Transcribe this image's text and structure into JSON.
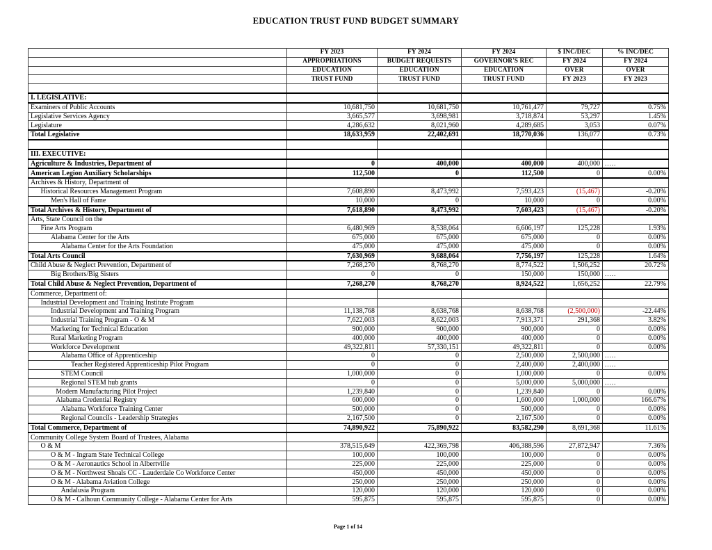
{
  "title": "EDUCATION TRUST FUND BUDGET SUMMARY",
  "footer": {
    "page_label": "Page 1 of 14"
  },
  "colors": {
    "negative_value": "#c00000",
    "text": "#000000",
    "background": "#ffffff"
  },
  "table": {
    "header_rows": [
      [
        "",
        "FY 2023",
        "FY 2024",
        "FY 2024",
        "$ INC/DEC",
        "% INC/DEC"
      ],
      [
        "",
        "APPROPRIATIONS",
        "BUDGET REQUESTS",
        "GOVERNOR'S REC",
        "FY 2024",
        "FY 2024"
      ],
      [
        "",
        "EDUCATION",
        "EDUCATION",
        "EDUCATION",
        "OVER",
        "OVER"
      ],
      [
        "",
        "TRUST FUND",
        "TRUST FUND",
        "TRUST FUND",
        "FY 2023",
        "FY 2023"
      ],
      [
        "",
        "",
        "",
        "",
        "",
        ""
      ]
    ],
    "rows": [
      {
        "label": "I. LEGISLATIVE:",
        "bold": true,
        "indent": 0,
        "values": [
          "",
          "",
          "",
          "",
          ""
        ]
      },
      {
        "label": "Examiners of Public Accounts",
        "bold": false,
        "indent": 0,
        "values": [
          "10,681,750",
          "10,681,750",
          "10,761,477",
          "79,727",
          "0.75%"
        ]
      },
      {
        "label": "Legislative Services Agency",
        "bold": false,
        "indent": 0,
        "values": [
          "3,665,577",
          "3,698,981",
          "3,718,874",
          "53,297",
          "1.45%"
        ]
      },
      {
        "label": "Legislature",
        "bold": false,
        "indent": 0,
        "values": [
          "4,286,632",
          "8,021,960",
          "4,289,685",
          "3,053",
          "0.07%"
        ]
      },
      {
        "label": "Total Legislative",
        "bold": true,
        "indent": 0,
        "values": [
          "18,633,959",
          "22,402,691",
          "18,770,036",
          "136,077",
          "0.73%"
        ]
      },
      {
        "label": "",
        "bold": false,
        "indent": 0,
        "values": [
          "",
          "",
          "",
          "",
          ""
        ]
      },
      {
        "label": "III. EXECUTIVE:",
        "bold": true,
        "indent": 0,
        "values": [
          "",
          "",
          "",
          "",
          ""
        ]
      },
      {
        "label": "Agriculture & Industries, Department of",
        "bold": true,
        "indent": 0,
        "values": [
          "0",
          "400,000",
          "400,000",
          "400,000",
          "....."
        ]
      },
      {
        "label": "American Legion Auxiliary Scholarships",
        "bold": true,
        "indent": 0,
        "values": [
          "112,500",
          "0",
          "112,500",
          "0",
          "0.00%"
        ]
      },
      {
        "label": "Archives & History, Department of",
        "bold": false,
        "indent": 0,
        "values": [
          "",
          "",
          "",
          "",
          ""
        ]
      },
      {
        "label": "Historical Resources Management Program",
        "bold": false,
        "indent": 1,
        "values": [
          "7,608,890",
          "8,473,992",
          "7,593,423",
          "(15,467)",
          "-0.20%"
        ]
      },
      {
        "label": "Men's Hall of Fame",
        "bold": false,
        "indent": 2,
        "values": [
          "10,000",
          "0",
          "10,000",
          "0",
          "0.00%"
        ]
      },
      {
        "label": "Total Archives & History, Department of",
        "bold": true,
        "indent": 0,
        "values": [
          "7,618,890",
          "8,473,992",
          "7,603,423",
          "(15,467)",
          "-0.20%"
        ]
      },
      {
        "label": "Arts, State Council on the",
        "bold": false,
        "indent": 0,
        "values": [
          "",
          "",
          "",
          "",
          ""
        ]
      },
      {
        "label": "Fine Arts Program",
        "bold": false,
        "indent": 1,
        "values": [
          "6,480,969",
          "8,538,064",
          "6,606,197",
          "125,228",
          "1.93%"
        ]
      },
      {
        "label": "Alabama Center for the Arts",
        "bold": false,
        "indent": 2,
        "values": [
          "675,000",
          "675,000",
          "675,000",
          "0",
          "0.00%"
        ]
      },
      {
        "label": "Alabama Center for the Arts Foundation",
        "bold": false,
        "indent": 3,
        "values": [
          "475,000",
          "475,000",
          "475,000",
          "0",
          "0.00%"
        ]
      },
      {
        "label": "Total Arts Council",
        "bold": true,
        "indent": 0,
        "values": [
          "7,630,969",
          "9,688,064",
          "7,756,197",
          "125,228",
          "1.64%"
        ]
      },
      {
        "label": "Child Abuse & Neglect Prevention, Department of",
        "bold": false,
        "indent": 0,
        "values": [
          "7,268,270",
          "8,768,270",
          "8,774,522",
          "1,506,252",
          "20.72%"
        ]
      },
      {
        "label": "Big Brothers/Big Sisters",
        "bold": false,
        "indent": 2,
        "values": [
          "0",
          "0",
          "150,000",
          "150,000",
          "....."
        ]
      },
      {
        "label": "Total Child Abuse & Neglect Prevention, Department of",
        "bold": true,
        "indent": 0,
        "values": [
          "7,268,270",
          "8,768,270",
          "8,924,522",
          "1,656,252",
          "22.79%"
        ]
      },
      {
        "label": "Commerce, Department of:",
        "bold": false,
        "indent": 0,
        "values": [
          "",
          "",
          "",
          "",
          ""
        ]
      },
      {
        "label": "Industrial Development and Training Institute Program",
        "bold": false,
        "indent": 1,
        "values": [
          "",
          "",
          "",
          "",
          ""
        ]
      },
      {
        "label": "Industrial Development and Training Program",
        "bold": false,
        "indent": 2,
        "values": [
          "11,138,768",
          "8,638,768",
          "8,638,768",
          "(2,500,000)",
          "-22.44%"
        ]
      },
      {
        "label": "Industrial Training Program - O & M",
        "bold": false,
        "indent": 2,
        "values": [
          "7,622,003",
          "8,622,003",
          "7,913,371",
          "291,368",
          "3.82%"
        ]
      },
      {
        "label": "Marketing for Technical Education",
        "bold": false,
        "indent": 2,
        "values": [
          "900,000",
          "900,000",
          "900,000",
          "0",
          "0.00%"
        ]
      },
      {
        "label": "Rural Marketing Program",
        "bold": false,
        "indent": 2,
        "values": [
          "400,000",
          "400,000",
          "400,000",
          "0",
          "0.00%"
        ]
      },
      {
        "label": "Workforce Development",
        "bold": false,
        "indent": 2,
        "values": [
          "49,322,811",
          "57,330,151",
          "49,322,811",
          "0",
          "0.00%"
        ]
      },
      {
        "label": "Alabama Office of Apprenticeship",
        "bold": false,
        "indent": 3,
        "values": [
          "0",
          "0",
          "2,500,000",
          "2,500,000",
          "....."
        ]
      },
      {
        "label": "Teacher Registered Apprenticeship Pilot Program",
        "bold": false,
        "indent": 4,
        "values": [
          "0",
          "0",
          "2,400,000",
          "2,400,000",
          "....."
        ]
      },
      {
        "label": "STEM Council",
        "bold": false,
        "indent": 3,
        "values": [
          "1,000,000",
          "0",
          "1,000,000",
          "0",
          "0.00%"
        ]
      },
      {
        "label": "Regional STEM hub grants",
        "bold": false,
        "indent": 3,
        "values": [
          "0",
          "0",
          "5,000,000",
          "5,000,000",
          "....."
        ]
      },
      {
        "label": "Modern Manufacturing Pilot Project",
        "bold": false,
        "indent": 2.5,
        "values": [
          "1,239,840",
          "0",
          "1,239,840",
          "0",
          "0.00%"
        ]
      },
      {
        "label": "Alabama Credential Registry",
        "bold": false,
        "indent": 2.5,
        "values": [
          "600,000",
          "0",
          "1,600,000",
          "1,000,000",
          "166.67%"
        ]
      },
      {
        "label": "Alabama Workforce Training Center",
        "bold": false,
        "indent": 3,
        "values": [
          "500,000",
          "0",
          "500,000",
          "0",
          "0.00%"
        ]
      },
      {
        "label": "Regional Councils - Leadership Strategies",
        "bold": false,
        "indent": 3,
        "values": [
          "2,167,500",
          "0",
          "2,167,500",
          "0",
          "0.00%"
        ]
      },
      {
        "label": "Total Commerce, Department of",
        "bold": true,
        "indent": 0,
        "values": [
          "74,890,922",
          "75,890,922",
          "83,582,290",
          "8,691,368",
          "11.61%"
        ]
      },
      {
        "label": "Community College System Board of Trustees, Alabama",
        "bold": false,
        "indent": 0,
        "values": [
          "",
          "",
          "",
          "",
          ""
        ]
      },
      {
        "label": "O & M",
        "bold": false,
        "indent": 1,
        "values": [
          "378,515,649",
          "422,369,798",
          "406,388,596",
          "27,872,947",
          "7.36%"
        ]
      },
      {
        "label": "O & M - Ingram State Technical College",
        "bold": false,
        "indent": 2,
        "values": [
          "100,000",
          "100,000",
          "100,000",
          "0",
          "0.00%"
        ]
      },
      {
        "label": "O & M - Aeronautics School in Albertville",
        "bold": false,
        "indent": 2,
        "values": [
          "225,000",
          "225,000",
          "225,000",
          "0",
          "0.00%"
        ]
      },
      {
        "label": "O & M - Northwest Shoals CC - Lauderdale Co Workforce Center",
        "bold": false,
        "indent": 2,
        "values": [
          "450,000",
          "450,000",
          "450,000",
          "0",
          "0.00%"
        ]
      },
      {
        "label": "O & M - Alabama Aviation College",
        "bold": false,
        "indent": 2,
        "values": [
          "250,000",
          "250,000",
          "250,000",
          "0",
          "0.00%"
        ]
      },
      {
        "label": "Andalusia Program",
        "bold": false,
        "indent": 3,
        "values": [
          "120,000",
          "120,000",
          "120,000",
          "0",
          "0.00%"
        ]
      },
      {
        "label": "O & M - Calhoun Community College - Alabama Center for Arts",
        "bold": false,
        "indent": 2,
        "values": [
          "595,875",
          "595,875",
          "595,875",
          "0",
          "0.00%"
        ]
      }
    ]
  }
}
